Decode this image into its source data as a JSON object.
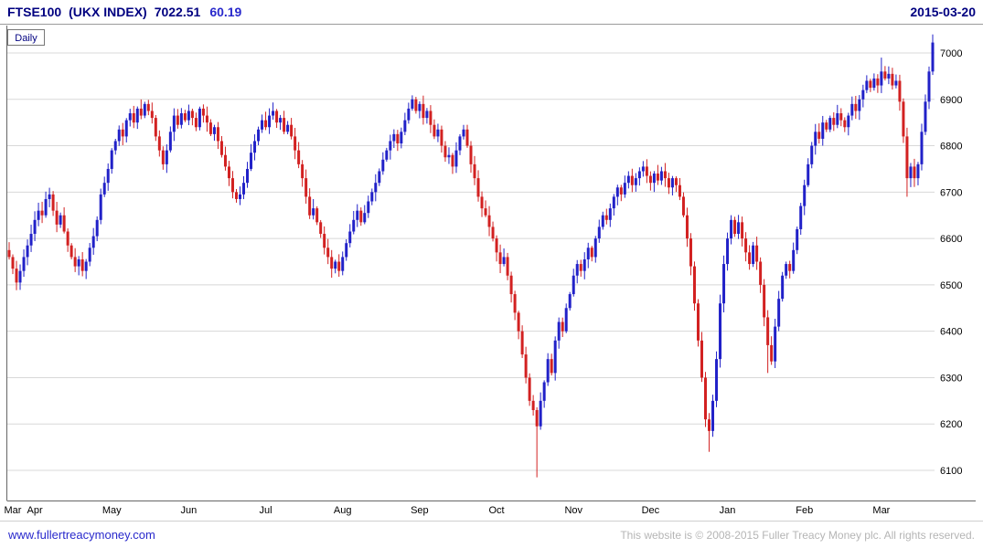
{
  "header": {
    "symbol": "FTSE100",
    "name": "(UKX INDEX)",
    "last": "7022.51",
    "change": "60.19",
    "date": "2015-03-20"
  },
  "chart_label": "Daily",
  "footer": {
    "link": "www.fullertreacymoney.com",
    "copyright": "This website is © 2008-2015 Fuller Treacy Money plc. All rights reserved."
  },
  "colors": {
    "up": "#2121c8",
    "down": "#d22121",
    "grid": "#d8d8d8",
    "axis_text": "#000000",
    "border": "#666666",
    "label_text": "#000080"
  },
  "chart_data": {
    "type": "candlestick",
    "title": "FTSE100 (UKX INDEX) Daily",
    "xlabel": "",
    "ylabel": "",
    "ylim": [
      6050,
      7050
    ],
    "yticks": [
      7000,
      6900,
      6800,
      6700,
      6600,
      6500,
      6400,
      6300,
      6200,
      6100
    ],
    "grid": "horizontal",
    "legend": "none",
    "last_close": 7022.51,
    "change": 60.19,
    "x_axis": {
      "month_labels": [
        "Mar",
        "Apr",
        "May",
        "Jun",
        "Jul",
        "Aug",
        "Sep",
        "Oct",
        "Nov",
        "Dec",
        "Jan",
        "Feb",
        "Mar"
      ],
      "month_tick_indices": [
        0,
        7,
        28,
        49,
        70,
        91,
        112,
        133,
        154,
        175,
        196,
        217,
        238
      ]
    },
    "closes": [
      6560,
      6535,
      6505,
      6530,
      6560,
      6585,
      6610,
      6640,
      6660,
      6650,
      6685,
      6695,
      6660,
      6630,
      6650,
      6615,
      6585,
      6560,
      6540,
      6555,
      6530,
      6550,
      6580,
      6605,
      6640,
      6695,
      6720,
      6750,
      6790,
      6810,
      6835,
      6820,
      6855,
      6870,
      6850,
      6880,
      6865,
      6890,
      6875,
      6860,
      6820,
      6790,
      6760,
      6790,
      6830,
      6865,
      6845,
      6870,
      6855,
      6875,
      6860,
      6840,
      6880,
      6865,
      6850,
      6825,
      6840,
      6810,
      6780,
      6755,
      6730,
      6700,
      6685,
      6695,
      6720,
      6750,
      6785,
      6810,
      6835,
      6855,
      6840,
      6865,
      6875,
      6850,
      6860,
      6830,
      6845,
      6820,
      6790,
      6760,
      6730,
      6690,
      6650,
      6665,
      6635,
      6610,
      6580,
      6560,
      6535,
      6550,
      6530,
      6560,
      6590,
      6615,
      6640,
      6660,
      6635,
      6655,
      6680,
      6700,
      6720,
      6745,
      6770,
      6790,
      6810,
      6825,
      6805,
      6830,
      6855,
      6880,
      6900,
      6875,
      6890,
      6860,
      6875,
      6845,
      6820,
      6835,
      6800,
      6775,
      6780,
      6755,
      6790,
      6820,
      6835,
      6800,
      6760,
      6730,
      6690,
      6665,
      6650,
      6625,
      6600,
      6570,
      6545,
      6560,
      6520,
      6480,
      6440,
      6400,
      6350,
      6300,
      6250,
      6230,
      6195,
      6250,
      6290,
      6340,
      6310,
      6380,
      6420,
      6400,
      6450,
      6480,
      6520,
      6545,
      6530,
      6555,
      6580,
      6560,
      6600,
      6625,
      6650,
      6640,
      6665,
      6690,
      6710,
      6695,
      6720,
      6735,
      6715,
      6730,
      6745,
      6755,
      6735,
      6720,
      6740,
      6725,
      6745,
      6730,
      6710,
      6730,
      6715,
      6690,
      6650,
      6600,
      6540,
      6460,
      6380,
      6300,
      6210,
      6185,
      6250,
      6340,
      6460,
      6545,
      6600,
      6640,
      6610,
      6635,
      6600,
      6570,
      6545,
      6585,
      6550,
      6500,
      6430,
      6370,
      6335,
      6410,
      6470,
      6520,
      6545,
      6530,
      6575,
      6620,
      6670,
      6715,
      6760,
      6800,
      6830,
      6815,
      6850,
      6835,
      6860,
      6845,
      6870,
      6855,
      6840,
      6865,
      6890,
      6875,
      6900,
      6920,
      6940,
      6925,
      6945,
      6930,
      6960,
      6945,
      6955,
      6930,
      6940,
      6895,
      6820,
      6730,
      6755,
      6730,
      6760,
      6830,
      6895,
      6960,
      7022.51
    ],
    "wick_overrides": {
      "144": {
        "low": 6085
      },
      "191": {
        "low": 6140
      },
      "207": {
        "low": 6310
      },
      "238": {
        "high": 6990
      },
      "245": {
        "low": 6690
      },
      "252": {
        "high": 7040
      }
    }
  }
}
